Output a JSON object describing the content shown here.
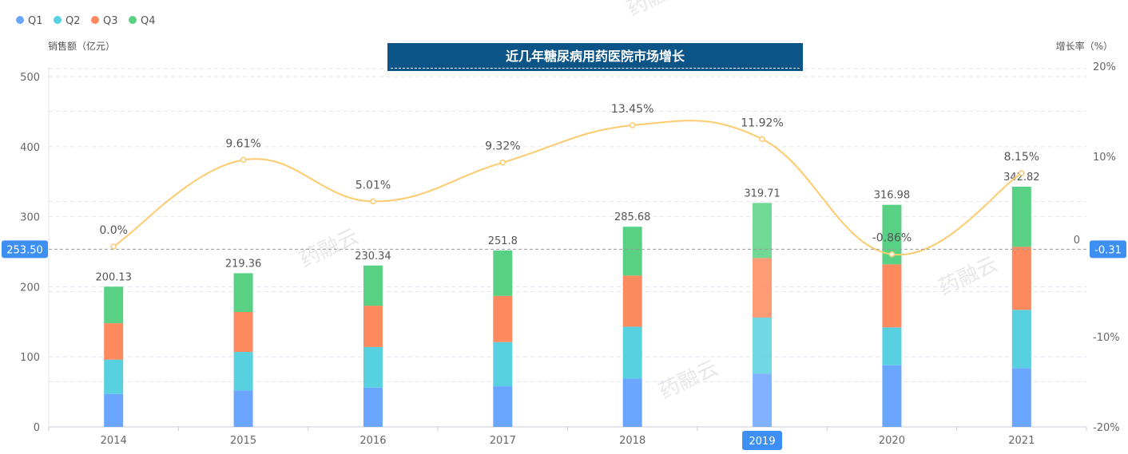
{
  "chart_data": {
    "type": "bar",
    "title": "近几年糖尿病用药医院市场增长",
    "ylabel": "销售额（亿元）",
    "y2label": "增长率（%）",
    "categories": [
      "2014",
      "2015",
      "2016",
      "2017",
      "2018",
      "2019",
      "2020",
      "2021"
    ],
    "ylim": [
      0,
      500
    ],
    "yticks": [
      "0",
      "100",
      "200",
      "300",
      "400",
      "500"
    ],
    "y2lim": [
      -20,
      20
    ],
    "y2ticks": [
      "-20%",
      "-10%",
      "0",
      "10%",
      "20%"
    ],
    "y2tick_values": [
      -20,
      -10,
      0,
      10,
      20
    ],
    "series": [
      {
        "name": "Q1",
        "color": "#6aa5ff",
        "values": [
          47,
          52,
          56,
          58,
          69,
          76,
          88,
          84
        ]
      },
      {
        "name": "Q2",
        "color": "#57d0e0",
        "values": [
          49,
          55,
          58,
          63,
          74,
          80,
          54,
          83
        ]
      },
      {
        "name": "Q3",
        "color": "#fd8a5e",
        "values": [
          52,
          57,
          59,
          66,
          73,
          85,
          90,
          90
        ]
      },
      {
        "name": "Q4",
        "color": "#58d184",
        "values": [
          52.13,
          55.36,
          57.34,
          64.8,
          69.68,
          78.71,
          84.98,
          85.82
        ]
      }
    ],
    "totals": [
      "200.13",
      "219.36",
      "230.34",
      "251.8",
      "285.68",
      "319.71",
      "316.98",
      "342.82"
    ],
    "growth": {
      "name": "增长率",
      "color": "#fdcb6e",
      "values": [
        0.0,
        9.61,
        5.01,
        9.32,
        13.45,
        11.92,
        -0.86,
        8.15
      ],
      "labels": [
        "0.0%",
        "9.61%",
        "5.01%",
        "9.32%",
        "13.45%",
        "11.92%",
        "-0.86%",
        "8.15%"
      ]
    },
    "crosshair": {
      "left_value": "253.50",
      "right_value": "-0.31",
      "highlight_category": "2019"
    },
    "legend_position": "top-left",
    "watermark": "药融云"
  }
}
